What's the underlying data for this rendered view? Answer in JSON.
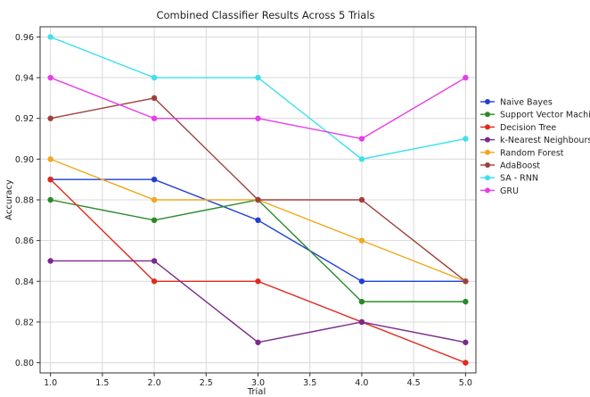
{
  "chart_data": {
    "type": "line",
    "title": "Combined Classifier Results Across 5 Trials",
    "xlabel": "Trial",
    "ylabel": "Accuracy",
    "x": [
      1.0,
      2.0,
      3.0,
      4.0,
      5.0
    ],
    "xlim": [
      0.9,
      5.1
    ],
    "ylim": [
      0.795,
      0.965
    ],
    "xticks": [
      "1.0",
      "1.5",
      "2.0",
      "2.5",
      "3.0",
      "3.5",
      "4.0",
      "4.5",
      "5.0"
    ],
    "yticks": [
      "0.80",
      "0.82",
      "0.84",
      "0.86",
      "0.88",
      "0.90",
      "0.92",
      "0.94",
      "0.96"
    ],
    "grid": true,
    "legend_position": "right",
    "series": [
      {
        "name": "Naive Bayes",
        "color": "#1f3fd6",
        "values": [
          0.89,
          0.89,
          0.87,
          0.84,
          0.84
        ]
      },
      {
        "name": "Support Vector Machine",
        "color": "#2a8a2a",
        "values": [
          0.88,
          0.87,
          0.88,
          0.83,
          0.83
        ]
      },
      {
        "name": "Decision Tree",
        "color": "#e02a1e",
        "values": [
          0.89,
          0.84,
          0.84,
          0.82,
          0.8
        ]
      },
      {
        "name": "k-Nearest Neighbours",
        "color": "#7a2a8a",
        "values": [
          0.85,
          0.85,
          0.81,
          0.82,
          0.81
        ]
      },
      {
        "name": "Random Forest",
        "color": "#f0a820",
        "values": [
          0.9,
          0.88,
          0.88,
          0.86,
          0.84
        ]
      },
      {
        "name": "AdaBoost",
        "color": "#a0403c",
        "values": [
          0.92,
          0.93,
          0.88,
          0.88,
          0.84
        ]
      },
      {
        "name": "SA - RNN",
        "color": "#3ee0ee",
        "values": [
          0.96,
          0.94,
          0.94,
          0.9,
          0.91
        ]
      },
      {
        "name": "GRU",
        "color": "#e63ee6",
        "values": [
          0.94,
          0.92,
          0.92,
          0.91,
          0.94
        ]
      }
    ]
  }
}
